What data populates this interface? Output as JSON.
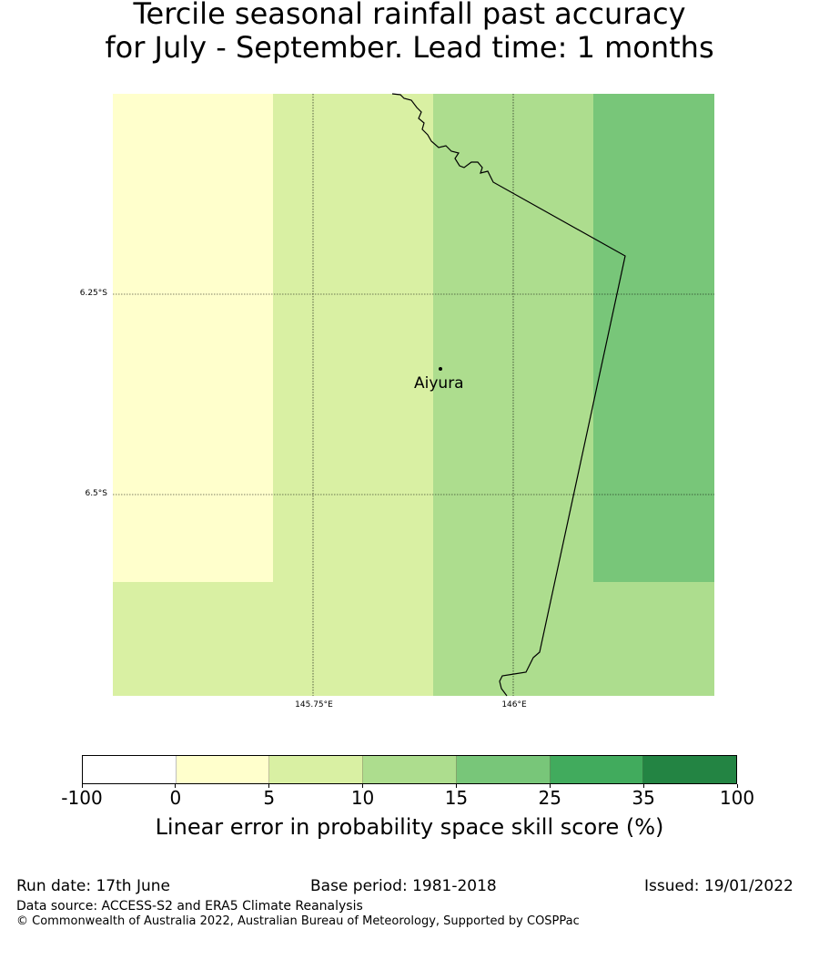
{
  "title_line1": "Tercile seasonal rainfall past accuracy",
  "title_line2": "for July - September. Lead time: 1 months",
  "map": {
    "gridlines": {
      "lat_labels": [
        "6.25°S",
        "6.5°S"
      ],
      "lon_labels": [
        "145.75°E",
        "146°E"
      ]
    },
    "place": {
      "name": "Aiyura"
    },
    "cells": [
      {
        "row": 0,
        "col": 0,
        "category": "0-5"
      },
      {
        "row": 0,
        "col": 1,
        "category": "5-10"
      },
      {
        "row": 0,
        "col": 2,
        "category": "10-15"
      },
      {
        "row": 0,
        "col": 3,
        "category": "15-25"
      },
      {
        "row": 1,
        "col": 0,
        "category": "5-10"
      },
      {
        "row": 1,
        "col": 1,
        "category": "5-10"
      },
      {
        "row": 1,
        "col": 2,
        "category": "10-15"
      },
      {
        "row": 1,
        "col": 3,
        "category": "10-15"
      }
    ]
  },
  "colorbar": {
    "ticks": [
      "-100",
      "0",
      "5",
      "10",
      "15",
      "25",
      "35",
      "100"
    ],
    "colors": [
      "#ffffff",
      "#ffffcc",
      "#d9f0a3",
      "#addd8e",
      "#78c679",
      "#41ab5d",
      "#238443"
    ],
    "label": "Linear error in probability space skill score (%)"
  },
  "footer": {
    "run_date": "Run date: 17th June",
    "base_period": "Base period: 1981-2018",
    "issued": "Issued: 19/01/2022",
    "data_source": "Data source: ACCESS-S2 and ERA5 Climate Reanalysis",
    "copyright": "© Commonwealth of Australia 2022, Australian Bureau of Meteorology, Supported by COSPPac"
  }
}
